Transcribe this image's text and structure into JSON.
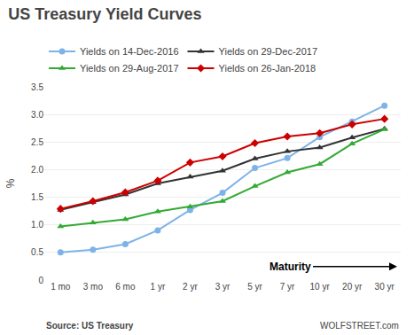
{
  "chart_data": {
    "type": "line",
    "title": "US Treasury Yield Curves",
    "y_label": "%",
    "annotations": [
      "Maturity",
      "Source: US Treasury",
      "WOLFSTREET.com"
    ],
    "categories": [
      "1 mo",
      "3 mo",
      "6 mo",
      "1 yr",
      "2 yr",
      "3 yr",
      "5 yr",
      "7 yr",
      "10 yr",
      "20 yr",
      "30 yr"
    ],
    "series": [
      {
        "name": "Yields on 14-Dec-2016",
        "color": "#7eb3e8",
        "marker": "circle",
        "values": [
          0.5,
          0.55,
          0.65,
          0.9,
          1.27,
          1.58,
          2.03,
          2.21,
          2.59,
          2.87,
          3.16
        ]
      },
      {
        "name": "Yields on 29-Dec-2017",
        "color": "#333333",
        "marker": "triangle-up",
        "values": [
          1.27,
          1.41,
          1.55,
          1.75,
          1.87,
          1.98,
          2.2,
          2.33,
          2.4,
          2.58,
          2.74
        ]
      },
      {
        "name": "Yields on 29-Aug-2017",
        "color": "#33aa33",
        "marker": "triangle-up",
        "values": [
          0.97,
          1.04,
          1.1,
          1.24,
          1.33,
          1.43,
          1.7,
          1.95,
          2.1,
          2.47,
          2.73
        ]
      },
      {
        "name": "Yields on 26-Jan-2018",
        "color": "#cc0000",
        "marker": "diamond",
        "values": [
          1.29,
          1.43,
          1.59,
          1.8,
          2.13,
          2.24,
          2.48,
          2.6,
          2.66,
          2.82,
          2.92
        ]
      }
    ],
    "ylim": [
      0,
      3.5
    ],
    "yticks": [
      0,
      0.5,
      {
        "value": 1.0,
        "label": "1.0"
      },
      {
        "value": 1.5,
        "label": "1.5"
      },
      {
        "value": 2.0,
        "label": "2.0"
      },
      {
        "value": 2.5,
        "label": "2.5"
      },
      {
        "value": 3.0,
        "label": "3.0"
      },
      {
        "value": 3.5,
        "label": "3.5"
      }
    ],
    "grid": true,
    "legend": "top"
  }
}
